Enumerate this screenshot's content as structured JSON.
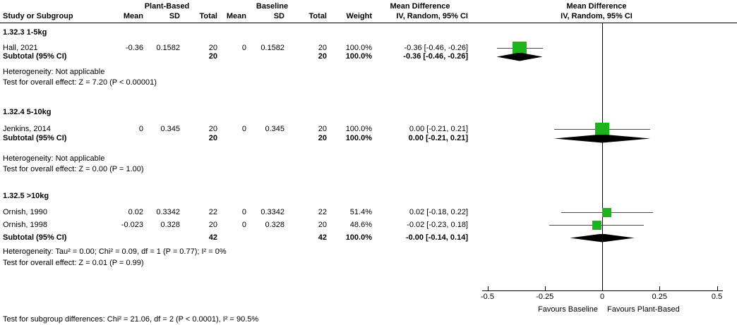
{
  "header": {
    "study_col": "Study or Subgroup",
    "group1": "Plant-Based",
    "group2": "Baseline",
    "mean": "Mean",
    "sd": "SD",
    "total": "Total",
    "weight": "Weight",
    "md_title": "Mean Difference",
    "md_model": "IV, Random, 95% CI"
  },
  "sections": [
    {
      "label": "1.32.3 1-5kg",
      "studies": [
        {
          "name": "Hall, 2021",
          "mean1": "-0.36",
          "sd1": "0.1582",
          "total1": "20",
          "mean2": "0",
          "sd2": "0.1582",
          "total2": "20",
          "weight": "100.0%",
          "ci_text": "-0.36 [-0.46, -0.26]"
        }
      ],
      "subtotal": {
        "label": "Subtotal (95% CI)",
        "total1": "20",
        "total2": "20",
        "weight": "100.0%",
        "ci_text": "-0.36 [-0.46, -0.26]"
      },
      "heterogeneity": "Heterogeneity: Not applicable",
      "overall": "Test for overall effect: Z = 7.20 (P < 0.00001)"
    },
    {
      "label": "1.32.4 5-10kg",
      "studies": [
        {
          "name": "Jenkins, 2014",
          "mean1": "0",
          "sd1": "0.345",
          "total1": "20",
          "mean2": "0",
          "sd2": "0.345",
          "total2": "20",
          "weight": "100.0%",
          "ci_text": "0.00 [-0.21, 0.21]"
        }
      ],
      "subtotal": {
        "label": "Subtotal (95% CI)",
        "total1": "20",
        "total2": "20",
        "weight": "100.0%",
        "ci_text": "0.00 [-0.21, 0.21]"
      },
      "heterogeneity": "Heterogeneity: Not applicable",
      "overall": "Test for overall effect: Z = 0.00 (P = 1.00)"
    },
    {
      "label": "1.32.5 >10kg",
      "studies": [
        {
          "name": "Ornish, 1990",
          "mean1": "0.02",
          "sd1": "0.3342",
          "total1": "22",
          "mean2": "0",
          "sd2": "0.3342",
          "total2": "22",
          "weight": "51.4%",
          "ci_text": "0.02 [-0.18, 0.22]"
        },
        {
          "name": "Ornish, 1998",
          "mean1": "-0.023",
          "sd1": "0.328",
          "total1": "20",
          "mean2": "0",
          "sd2": "0.328",
          "total2": "20",
          "weight": "48.6%",
          "ci_text": "-0.02 [-0.23, 0.18]"
        }
      ],
      "subtotal": {
        "label": "Subtotal (95% CI)",
        "total1": "42",
        "total2": "42",
        "weight": "100.0%",
        "ci_text": "-0.00 [-0.14, 0.14]"
      },
      "heterogeneity": "Heterogeneity: Tau² = 0.00; Chi² = 0.09, df = 1 (P = 0.77); I² = 0%",
      "overall": "Test for overall effect: Z = 0.01 (P = 0.99)"
    }
  ],
  "axis": {
    "tick_labels": [
      "-0.5",
      "-0.25",
      "0",
      "0.25",
      "0.5"
    ],
    "favours_left": "Favours Baseline",
    "favours_right": "Favours Plant-Based"
  },
  "footer": {
    "subgroup_test": "Test for subgroup differences: Chi² = 21.06, df = 2 (P < 0.0001), I² = 90.5%"
  },
  "colors": {
    "square": "#1DB31D",
    "diamond": "#000000",
    "ci_line": "#4a4a4a",
    "axis": "#000000"
  },
  "chart_data": {
    "type": "forest",
    "effect_measure": "Mean Difference",
    "model": "IV, Random, 95% CI",
    "xlim": [
      -0.5,
      0.5
    ],
    "ticks": [
      -0.5,
      -0.25,
      0,
      0.25,
      0.5
    ],
    "favours": {
      "left": "Favours Baseline",
      "right": "Favours Plant-Based"
    },
    "subgroups": [
      {
        "label": "1.32.3 1-5kg",
        "studies": [
          {
            "row_id": "s1-hall",
            "name": "Hall, 2021",
            "est": -0.36,
            "lo": -0.46,
            "hi": -0.26,
            "weight_pct": 100.0
          }
        ],
        "subtotal": {
          "row_id": "s1-sub",
          "est": -0.36,
          "lo": -0.46,
          "hi": -0.26
        }
      },
      {
        "label": "1.32.4 5-10kg",
        "studies": [
          {
            "row_id": "s2-jenkins",
            "name": "Jenkins, 2014",
            "est": 0.0,
            "lo": -0.21,
            "hi": 0.21,
            "weight_pct": 100.0
          }
        ],
        "subtotal": {
          "row_id": "s2-sub",
          "est": 0.0,
          "lo": -0.21,
          "hi": 0.21
        }
      },
      {
        "label": "1.32.5 >10kg",
        "studies": [
          {
            "row_id": "s3-ornish1990",
            "name": "Ornish, 1990",
            "est": 0.02,
            "lo": -0.18,
            "hi": 0.22,
            "weight_pct": 51.4
          },
          {
            "row_id": "s3-ornish1998",
            "name": "Ornish, 1998",
            "est": -0.023,
            "lo": -0.23,
            "hi": 0.18,
            "weight_pct": 48.6
          }
        ],
        "subtotal": {
          "row_id": "s3-sub",
          "est": -0.001,
          "lo": -0.14,
          "hi": 0.14
        }
      }
    ]
  }
}
